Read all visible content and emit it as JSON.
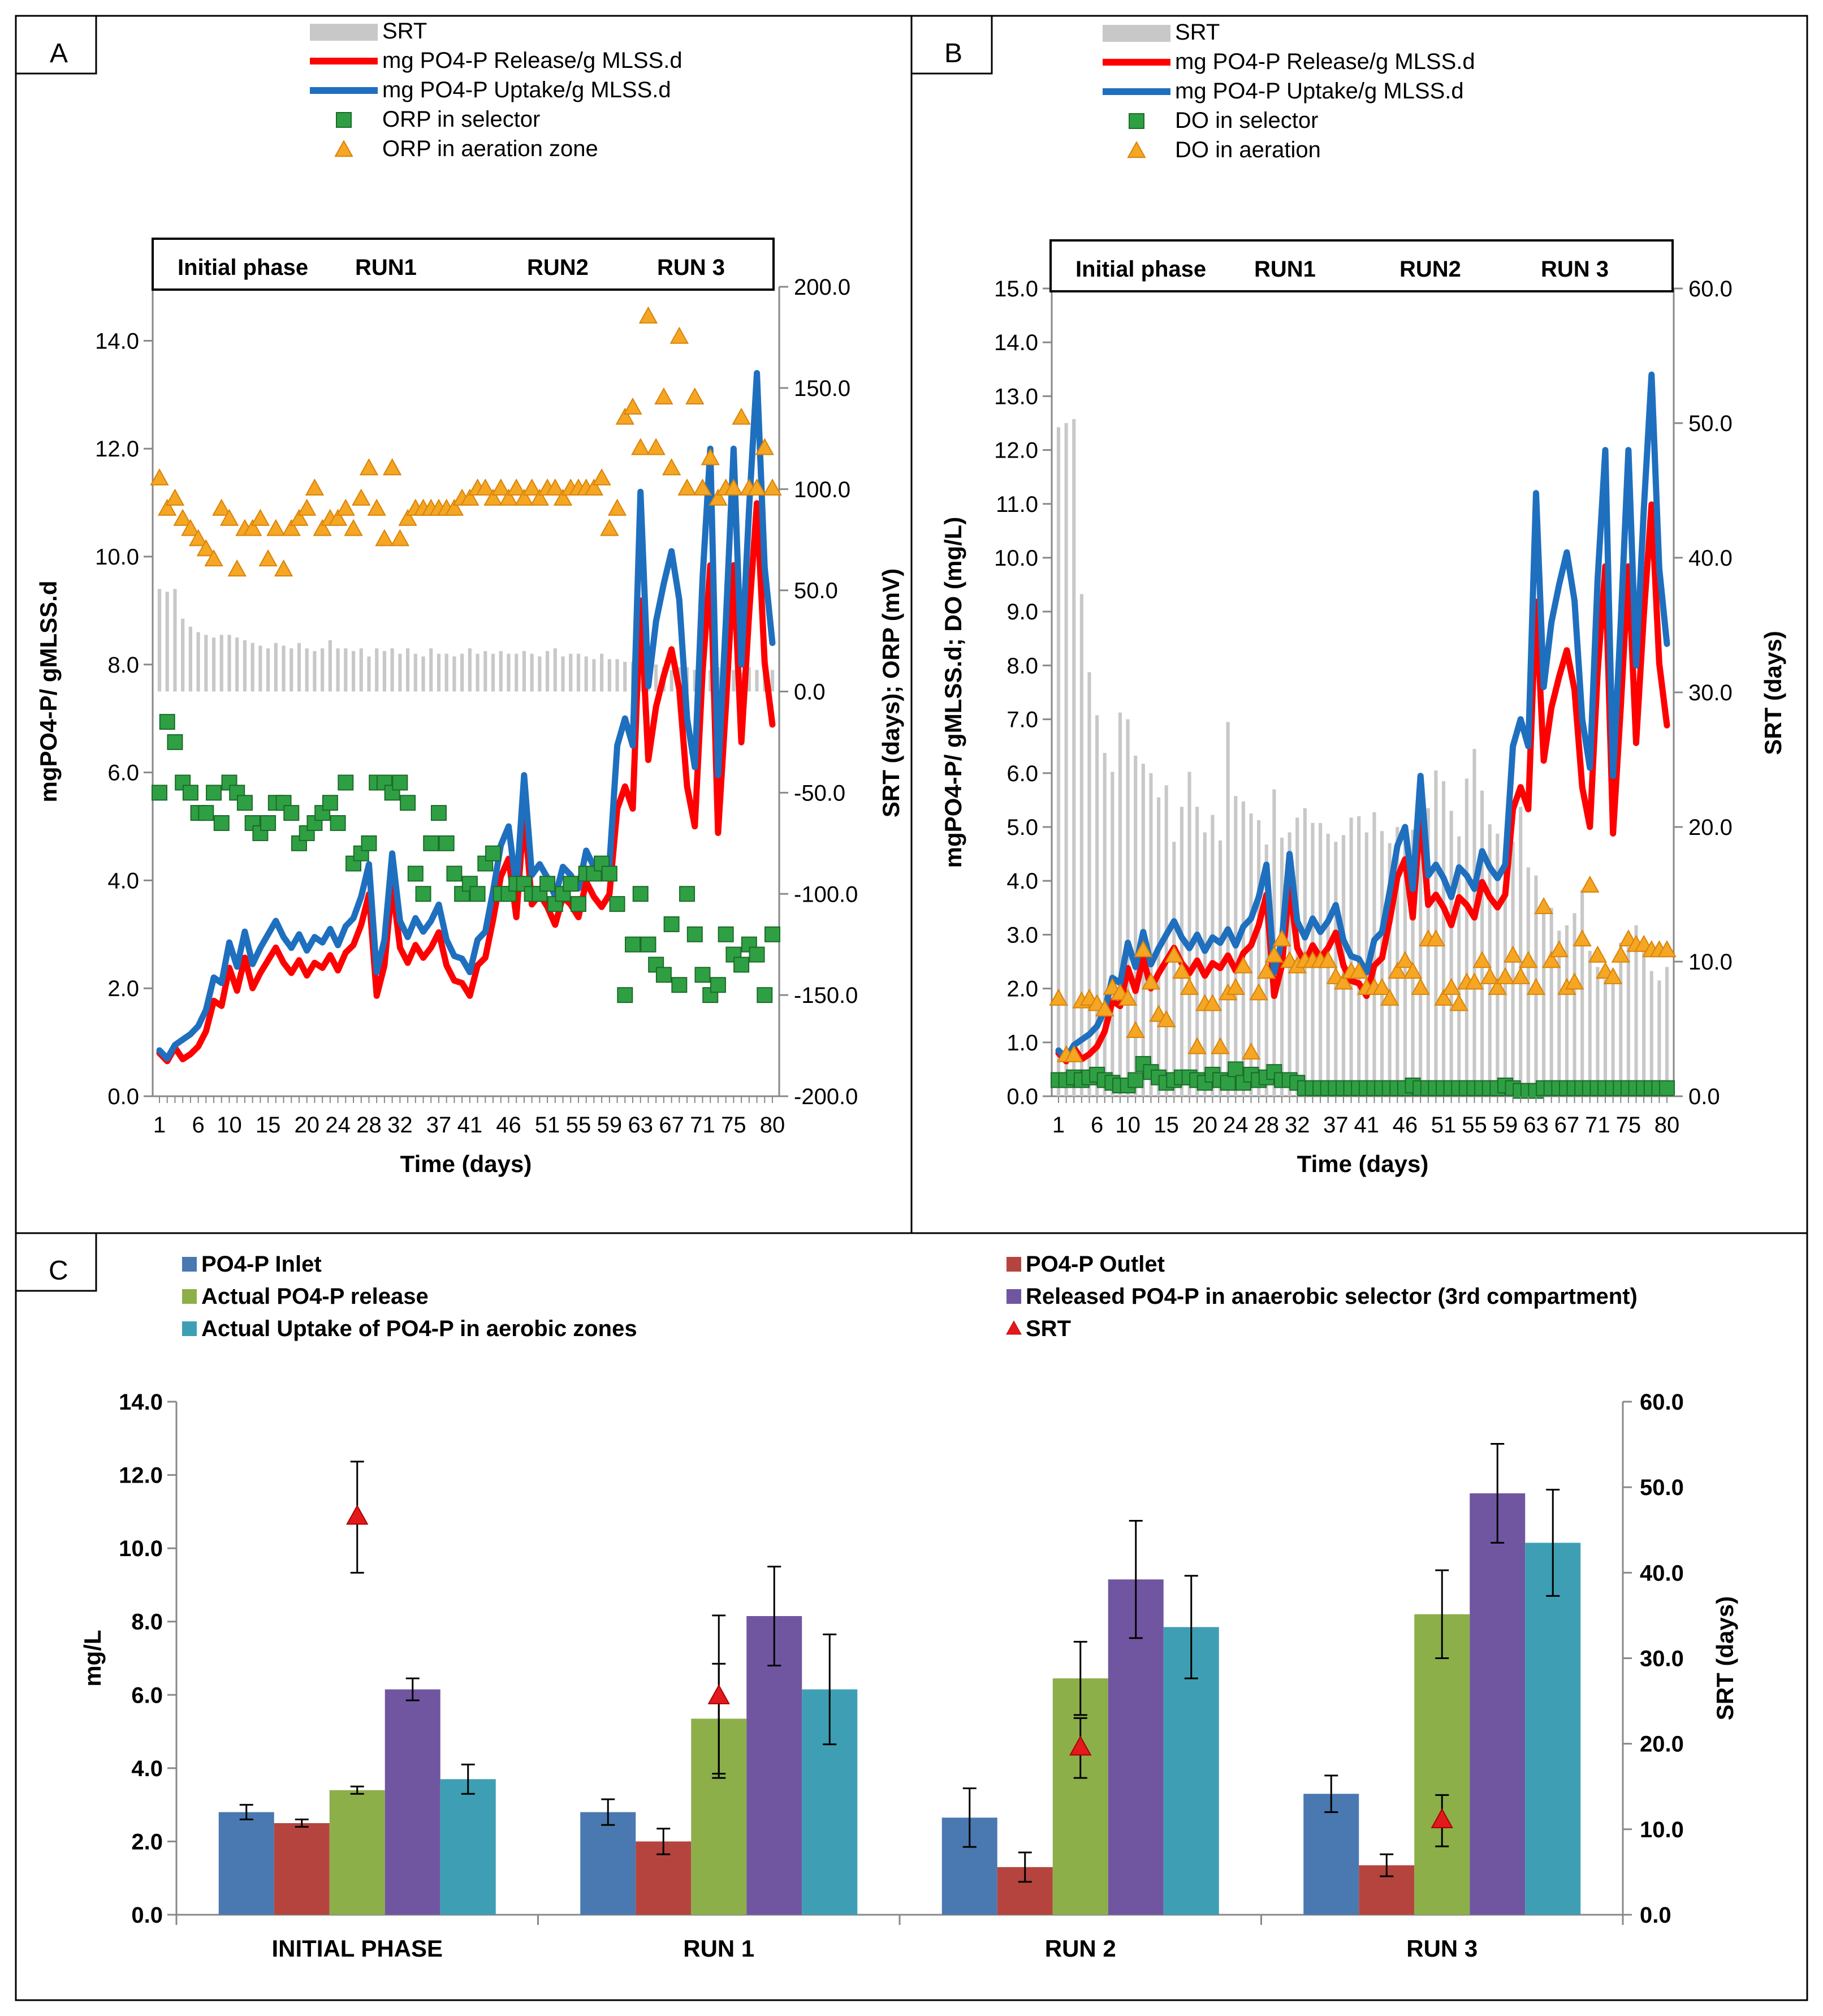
{
  "colors": {
    "srt_bar": "#c8c8c8",
    "release_line": "#ff0000",
    "uptake_line": "#1f6fbf",
    "selector_marker": "#2ea043",
    "aeration_marker": "#f5a623",
    "inlet": "#4a78b0",
    "outlet": "#b5443e",
    "actual_release": "#8caf4a",
    "released_selector": "#7056a0",
    "actual_uptake": "#3e9fb4",
    "srt_marker": "#e31a1c"
  },
  "chart_data": [
    {
      "panel": "A",
      "type": "line",
      "panel_label": "A",
      "legend": [
        "SRT",
        "mg PO4-P Release/g MLSS.d",
        "mg PO4-P Uptake/g MLSS.d",
        "ORP in selector",
        "ORP in aeration zone"
      ],
      "phase_labels": [
        "Initial phase",
        "RUN1",
        "RUN2",
        "RUN 3"
      ],
      "xlabel": "Time (days)",
      "ylabel": "mgPO4-P/ gMLSS.d",
      "y2label": "SRT (days); ORP (mV)",
      "ylim": [
        0,
        15
      ],
      "y2lim": [
        -200,
        200
      ],
      "y_ticks": [
        "0.0",
        "2.0",
        "4.0",
        "6.0",
        "8.0",
        "10.0",
        "12.0",
        "14.0"
      ],
      "y2_ticks": [
        "-200.0",
        "-150.0",
        "-100.0",
        "-50.0",
        "0.0",
        "50.0",
        "100.0",
        "150.0",
        "200.0"
      ],
      "x_ticks": [
        "1",
        "6",
        "10",
        "15",
        "20",
        "24",
        "28",
        "32",
        "37",
        "41",
        "46",
        "51",
        "55",
        "59",
        "63",
        "67",
        "71",
        "75",
        "80"
      ]
    },
    {
      "panel": "B",
      "type": "line",
      "panel_label": "B",
      "legend": [
        "SRT",
        "mg PO4-P Release/g MLSS.d",
        "mg PO4-P Uptake/g MLSS.d",
        "DO in selector",
        "DO in aeration"
      ],
      "phase_labels": [
        "Initial phase",
        "RUN1",
        "RUN2",
        "RUN 3"
      ],
      "xlabel": "Time (days)",
      "ylabel": "mgPO4-P/ gMLSS.d; DO (mg/L)",
      "y2label": "SRT (days)",
      "ylim": [
        0,
        15
      ],
      "y2lim": [
        0,
        60
      ],
      "y_ticks": [
        "0.0",
        "1.0",
        "2.0",
        "3.0",
        "4.0",
        "5.0",
        "6.0",
        "7.0",
        "8.0",
        "9.0",
        "10.0",
        "11.0",
        "12.0",
        "13.0",
        "14.0",
        "15.0"
      ],
      "y2_ticks": [
        "0.0",
        "10.0",
        "20.0",
        "30.0",
        "40.0",
        "50.0",
        "60.0"
      ],
      "x_ticks": [
        "1",
        "6",
        "10",
        "15",
        "20",
        "24",
        "28",
        "32",
        "37",
        "41",
        "46",
        "51",
        "55",
        "59",
        "63",
        "67",
        "71",
        "75",
        "80"
      ]
    },
    {
      "panel": "C",
      "type": "bar",
      "panel_label": "C",
      "legend": [
        "PO4-P Inlet",
        "PO4-P Outlet",
        "Actual PO4-P release",
        "Released PO4-P in anaerobic selector (3rd compartment)",
        "Actual Uptake of PO4-P in aerobic zones",
        "SRT"
      ],
      "categories": [
        "INITIAL PHASE",
        "RUN 1",
        "RUN 2",
        "RUN 3"
      ],
      "series": [
        {
          "name": "PO4-P Inlet",
          "values": [
            2.8,
            2.8,
            2.65,
            3.3
          ],
          "err": [
            0.2,
            0.35,
            0.8,
            0.5
          ]
        },
        {
          "name": "PO4-P Outlet",
          "values": [
            2.5,
            2.0,
            1.3,
            1.35
          ],
          "err": [
            0.1,
            0.35,
            0.4,
            0.3
          ]
        },
        {
          "name": "Actual PO4-P release",
          "values": [
            3.4,
            5.35,
            6.45,
            8.2
          ],
          "err": [
            0.1,
            1.5,
            1.0,
            1.2
          ]
        },
        {
          "name": "Released PO4-P in anaerobic selector (3rd compartment)",
          "values": [
            6.15,
            8.15,
            9.15,
            11.5
          ],
          "err": [
            0.3,
            1.35,
            1.6,
            1.35
          ]
        },
        {
          "name": "Actual Uptake of PO4-P in aerobic zones",
          "values": [
            3.7,
            6.15,
            7.85,
            10.15
          ],
          "err": [
            0.4,
            1.5,
            1.4,
            1.45
          ]
        }
      ],
      "srt": {
        "name": "SRT",
        "values": [
          46.5,
          25.5,
          19.5,
          11.0
        ],
        "err": [
          6.5,
          9.5,
          3.5,
          3.0
        ]
      },
      "ylabel": "mg/L",
      "y2label": "SRT (days)",
      "ylim": [
        0,
        14
      ],
      "y2lim": [
        0,
        60
      ],
      "y_ticks": [
        "0.0",
        "2.0",
        "4.0",
        "6.0",
        "8.0",
        "10.0",
        "12.0",
        "14.0"
      ],
      "y2_ticks": [
        "0.0",
        "10.0",
        "20.0",
        "30.0",
        "40.0",
        "50.0",
        "60.0"
      ]
    }
  ]
}
